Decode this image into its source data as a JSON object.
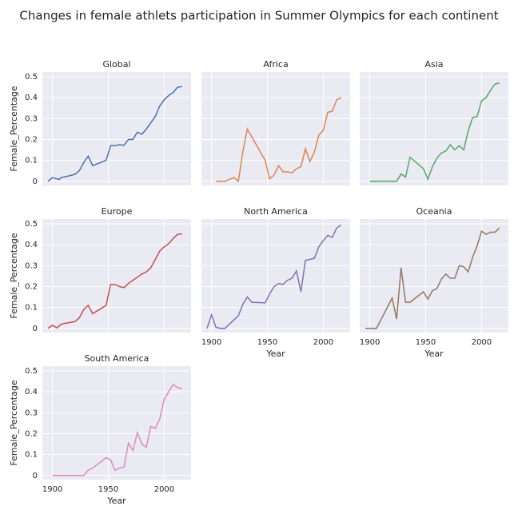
{
  "title": "Changes in female athlets participation in Summer Olympics for each continent",
  "chart_data": [
    {
      "type": "line",
      "title": "Global",
      "ylabel": "Female_Percentage",
      "color": "#4c72b0",
      "grid": true,
      "xlim": [
        1891,
        2024
      ],
      "ylim": [
        -0.02,
        0.523
      ],
      "xticks": [
        1900,
        1950,
        2000
      ],
      "yticks": [
        0.0,
        0.1,
        0.2,
        0.3,
        0.4,
        0.5
      ],
      "x": [
        1896,
        1900,
        1904,
        1906,
        1908,
        1912,
        1920,
        1924,
        1928,
        1932,
        1936,
        1948,
        1952,
        1956,
        1960,
        1964,
        1968,
        1972,
        1976,
        1980,
        1984,
        1988,
        1992,
        1996,
        2000,
        2004,
        2008,
        2012,
        2016
      ],
      "values": [
        0,
        0.017,
        0.012,
        0.008,
        0.018,
        0.022,
        0.033,
        0.05,
        0.09,
        0.12,
        0.075,
        0.1,
        0.17,
        0.17,
        0.175,
        0.172,
        0.2,
        0.2,
        0.235,
        0.225,
        0.25,
        0.28,
        0.31,
        0.36,
        0.39,
        0.41,
        0.425,
        0.45,
        0.453
      ]
    },
    {
      "type": "line",
      "title": "Africa",
      "color": "#dd8452",
      "grid": true,
      "xlim": [
        1891,
        2024
      ],
      "ylim": [
        -0.02,
        0.523
      ],
      "xticks": [
        1900,
        1950,
        2000
      ],
      "yticks": [
        0.0,
        0.1,
        0.2,
        0.3,
        0.4,
        0.5
      ],
      "x": [
        1904,
        1908,
        1912,
        1920,
        1924,
        1928,
        1932,
        1948,
        1952,
        1956,
        1960,
        1964,
        1968,
        1972,
        1976,
        1980,
        1984,
        1988,
        1992,
        1996,
        2000,
        2004,
        2008,
        2012,
        2016
      ],
      "values": [
        0,
        0,
        0,
        0.018,
        0,
        0.14,
        0.25,
        0.1,
        0.012,
        0.03,
        0.075,
        0.045,
        0.045,
        0.04,
        0.06,
        0.07,
        0.155,
        0.095,
        0.14,
        0.22,
        0.245,
        0.33,
        0.335,
        0.39,
        0.4
      ]
    },
    {
      "type": "line",
      "title": "Asia",
      "color": "#55a868",
      "grid": true,
      "xlim": [
        1891,
        2024
      ],
      "ylim": [
        -0.02,
        0.523
      ],
      "xticks": [
        1900,
        1950,
        2000
      ],
      "yticks": [
        0.0,
        0.1,
        0.2,
        0.3,
        0.4,
        0.5
      ],
      "x": [
        1900,
        1904,
        1908,
        1912,
        1920,
        1924,
        1928,
        1932,
        1936,
        1948,
        1952,
        1956,
        1960,
        1964,
        1968,
        1972,
        1976,
        1980,
        1984,
        1988,
        1992,
        1996,
        2000,
        2004,
        2008,
        2012,
        2016
      ],
      "values": [
        0,
        0,
        0,
        0,
        0,
        0,
        0.035,
        0.02,
        0.115,
        0.06,
        0.01,
        0.07,
        0.11,
        0.135,
        0.145,
        0.175,
        0.15,
        0.17,
        0.15,
        0.24,
        0.305,
        0.31,
        0.385,
        0.4,
        0.435,
        0.465,
        0.47
      ]
    },
    {
      "type": "line",
      "title": "Europe",
      "ylabel": "Female_Percentage",
      "color": "#c44e52",
      "grid": true,
      "xlim": [
        1891,
        2024
      ],
      "ylim": [
        -0.02,
        0.523
      ],
      "xticks": [
        1900,
        1950,
        2000
      ],
      "yticks": [
        0.0,
        0.1,
        0.2,
        0.3,
        0.4,
        0.5
      ],
      "x": [
        1896,
        1900,
        1904,
        1908,
        1912,
        1920,
        1924,
        1928,
        1932,
        1936,
        1948,
        1952,
        1956,
        1960,
        1964,
        1968,
        1972,
        1976,
        1980,
        1984,
        1988,
        1992,
        1996,
        2000,
        2004,
        2008,
        2012,
        2016
      ],
      "values": [
        0,
        0.015,
        0.002,
        0.02,
        0.025,
        0.032,
        0.05,
        0.09,
        0.11,
        0.07,
        0.11,
        0.21,
        0.21,
        0.2,
        0.195,
        0.215,
        0.23,
        0.245,
        0.26,
        0.27,
        0.29,
        0.33,
        0.37,
        0.39,
        0.405,
        0.43,
        0.45,
        0.452
      ]
    },
    {
      "type": "line",
      "title": "North America",
      "xlabel": "Year",
      "color": "#8172b3",
      "grid": true,
      "xlim": [
        1891,
        2024
      ],
      "ylim": [
        -0.02,
        0.523
      ],
      "xticks": [
        1900,
        1950,
        2000
      ],
      "yticks": [
        0.0,
        0.1,
        0.2,
        0.3,
        0.4,
        0.5
      ],
      "x": [
        1896,
        1900,
        1904,
        1908,
        1912,
        1920,
        1924,
        1928,
        1932,
        1936,
        1948,
        1952,
        1956,
        1960,
        1964,
        1968,
        1972,
        1976,
        1980,
        1984,
        1988,
        1992,
        1996,
        2000,
        2004,
        2008,
        2012,
        2016
      ],
      "values": [
        0,
        0.065,
        0.005,
        0,
        0,
        0.04,
        0.06,
        0.115,
        0.15,
        0.125,
        0.122,
        0.165,
        0.2,
        0.215,
        0.21,
        0.23,
        0.24,
        0.275,
        0.175,
        0.325,
        0.33,
        0.335,
        0.39,
        0.42,
        0.445,
        0.435,
        0.48,
        0.495
      ]
    },
    {
      "type": "line",
      "title": "Oceania",
      "xlabel": "Year",
      "color": "#937860",
      "grid": true,
      "xlim": [
        1891,
        2024
      ],
      "ylim": [
        -0.02,
        0.523
      ],
      "xticks": [
        1900,
        1950,
        2000
      ],
      "yticks": [
        0.0,
        0.1,
        0.2,
        0.3,
        0.4,
        0.5
      ],
      "x": [
        1896,
        1900,
        1906,
        1920,
        1924,
        1928,
        1932,
        1936,
        1948,
        1952,
        1956,
        1960,
        1964,
        1968,
        1972,
        1976,
        1980,
        1984,
        1988,
        1992,
        1996,
        2000,
        2004,
        2008,
        2012,
        2016
      ],
      "values": [
        0,
        0,
        0,
        0.145,
        0.045,
        0.29,
        0.125,
        0.125,
        0.175,
        0.14,
        0.18,
        0.19,
        0.235,
        0.26,
        0.24,
        0.24,
        0.3,
        0.295,
        0.27,
        0.34,
        0.395,
        0.465,
        0.45,
        0.46,
        0.46,
        0.48
      ]
    },
    {
      "type": "line",
      "title": "South America",
      "xlabel": "Year",
      "ylabel": "Female_Percentage",
      "color": "#da8bc3",
      "grid": true,
      "xlim": [
        1891,
        2024
      ],
      "ylim": [
        -0.02,
        0.523
      ],
      "xticks": [
        1900,
        1950,
        2000
      ],
      "yticks": [
        0.0,
        0.1,
        0.2,
        0.3,
        0.4,
        0.5
      ],
      "x": [
        1900,
        1904,
        1908,
        1912,
        1920,
        1924,
        1928,
        1932,
        1936,
        1948,
        1952,
        1956,
        1960,
        1964,
        1968,
        1972,
        1976,
        1980,
        1984,
        1988,
        1992,
        1996,
        2000,
        2004,
        2008,
        2012,
        2016
      ],
      "values": [
        0,
        0,
        0,
        0,
        0,
        0,
        0,
        0.025,
        0.035,
        0.085,
        0.075,
        0.025,
        0.035,
        0.04,
        0.155,
        0.12,
        0.205,
        0.15,
        0.135,
        0.235,
        0.225,
        0.27,
        0.365,
        0.4,
        0.435,
        0.42,
        0.415
      ]
    }
  ]
}
